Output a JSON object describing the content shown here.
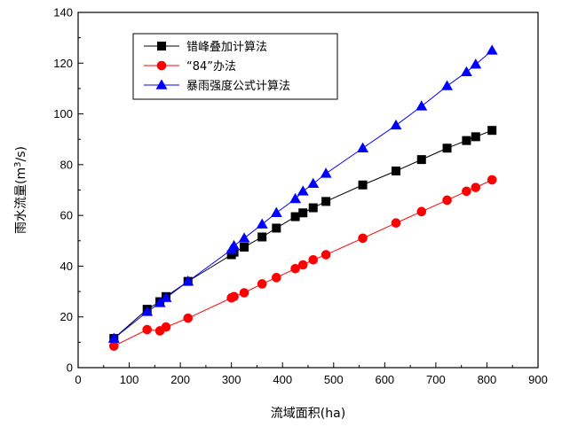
{
  "chart_data": {
    "type": "line",
    "title": "",
    "xlabel": "流域面积(ha)",
    "ylabel_prefix": "雨水流量(m",
    "ylabel_sup": "3",
    "ylabel_suffix": "/s)",
    "xlim": [
      0,
      900
    ],
    "ylim": [
      0,
      140
    ],
    "xticks": [
      0,
      100,
      200,
      300,
      400,
      500,
      600,
      700,
      800,
      900
    ],
    "yticks": [
      0,
      20,
      40,
      60,
      80,
      100,
      120,
      140
    ],
    "grid": false,
    "legend_position": "top-center",
    "series": [
      {
        "name": "错峰叠加计算法",
        "color": "#000000",
        "marker": "square",
        "x": [
          70,
          135,
          160,
          172,
          215,
          300,
          305,
          325,
          360,
          388,
          425,
          440,
          460,
          485,
          557,
          622,
          672,
          722,
          760,
          778,
          810
        ],
        "y": [
          11.5,
          23,
          26,
          28,
          34,
          44.5,
          45.5,
          47.5,
          51.5,
          55,
          59.5,
          61,
          63,
          65.5,
          72,
          77.5,
          82,
          86.5,
          89.5,
          91,
          93.5
        ]
      },
      {
        "name": "“84”办法",
        "color": "#ff0000",
        "marker": "circle",
        "x": [
          70,
          135,
          160,
          172,
          215,
          300,
          305,
          325,
          360,
          388,
          425,
          440,
          460,
          485,
          557,
          622,
          672,
          722,
          760,
          778,
          810
        ],
        "y": [
          8.5,
          15,
          14.5,
          16,
          19.5,
          27.5,
          28,
          29.5,
          33,
          35.5,
          39,
          40.5,
          42.5,
          44.5,
          51,
          57,
          61.5,
          66,
          69.5,
          71,
          74
        ]
      },
      {
        "name": "暴雨强度公式计算法",
        "color": "#0000ff",
        "marker": "triangle",
        "x": [
          70,
          135,
          160,
          172,
          215,
          300,
          305,
          325,
          360,
          388,
          425,
          440,
          460,
          485,
          557,
          622,
          672,
          722,
          760,
          778,
          810
        ],
        "y": [
          11.5,
          22,
          25.5,
          27.5,
          34,
          46.5,
          48,
          51,
          56.5,
          61,
          66.5,
          69.5,
          72.5,
          76.5,
          86.5,
          95.5,
          103,
          111,
          116.5,
          119.5,
          125
        ]
      }
    ]
  }
}
